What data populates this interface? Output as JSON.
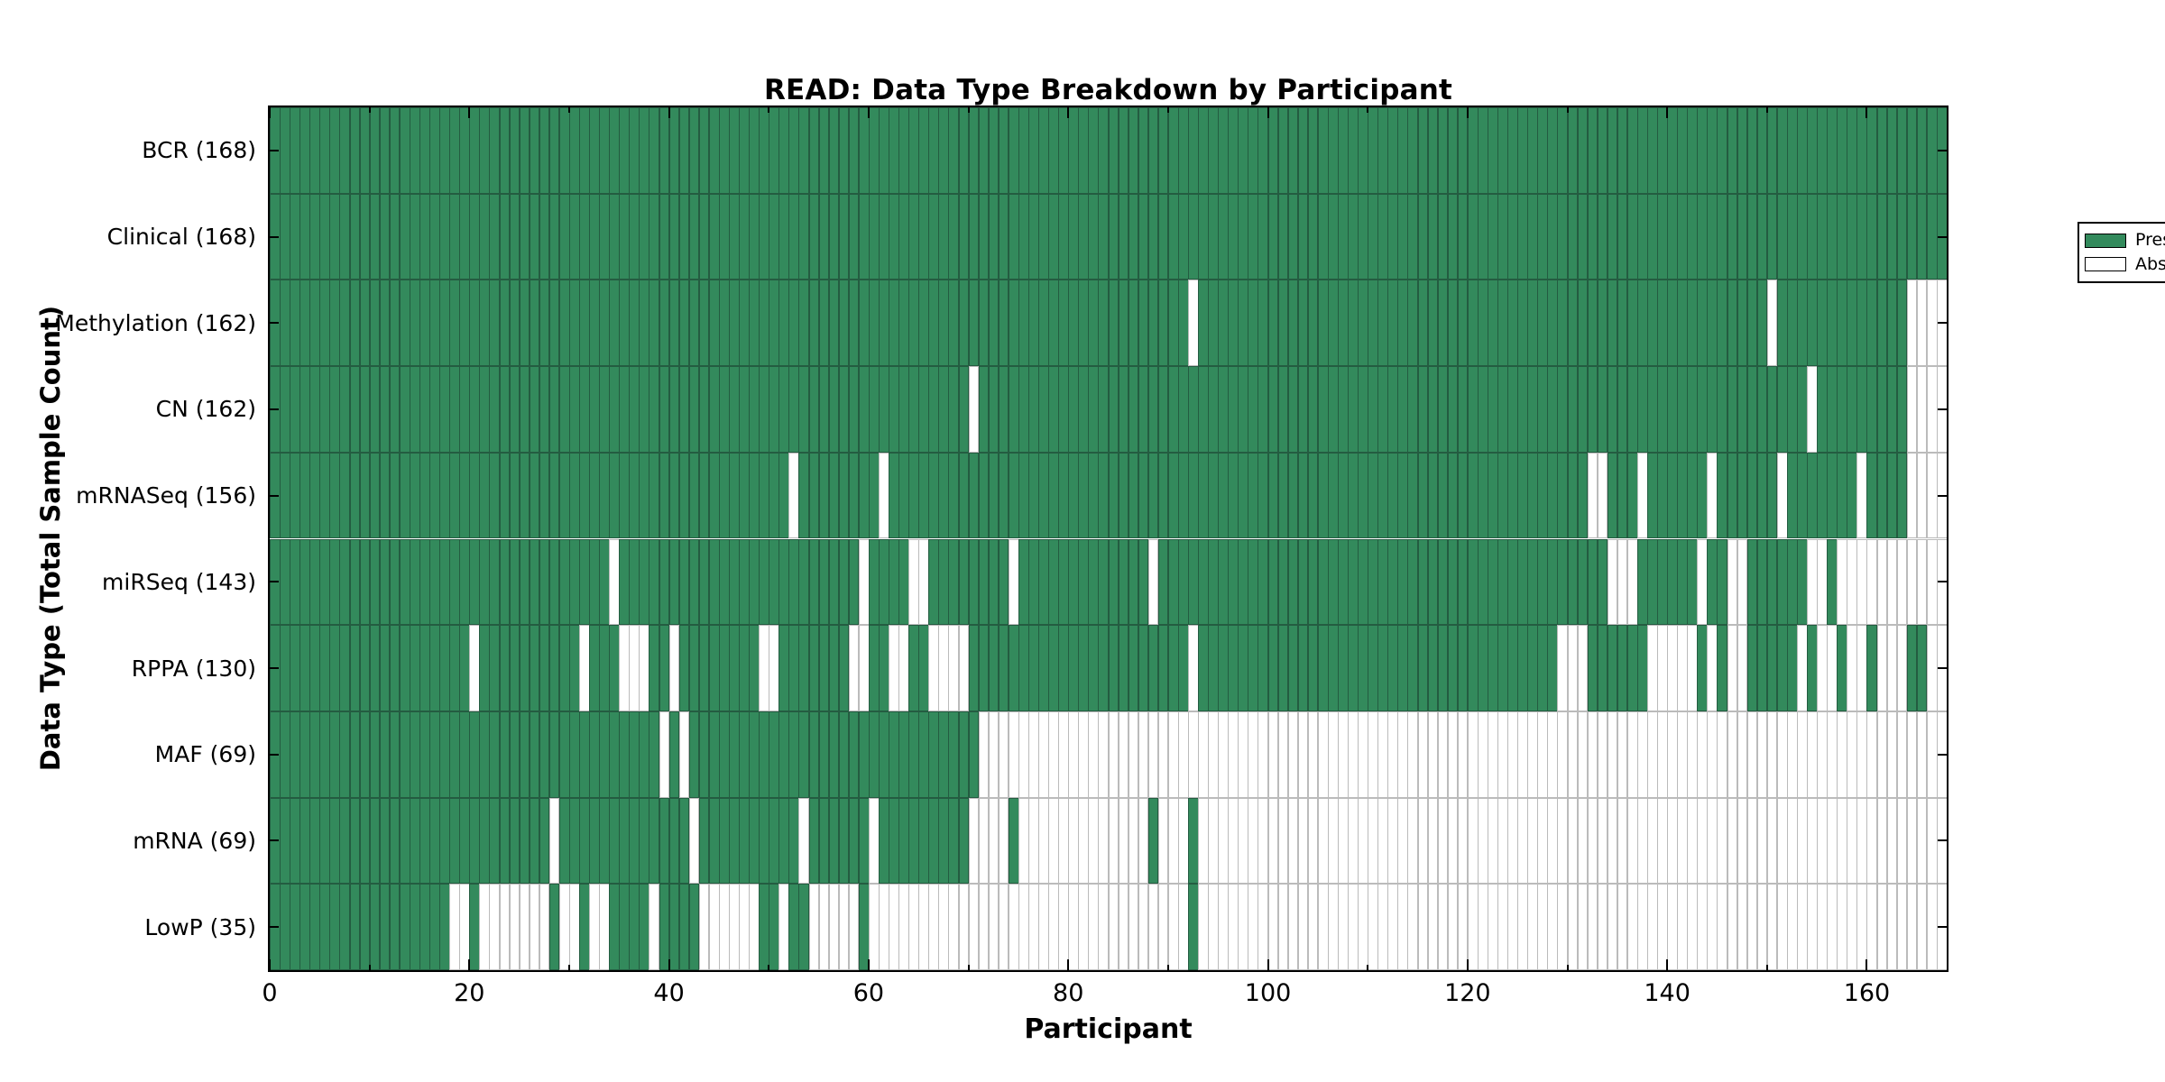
{
  "chart_data": {
    "type": "heatmap",
    "title": "READ: Data Type Breakdown by Participant",
    "xlabel": "Participant",
    "ylabel": "Data Type (Total Sample Count)",
    "xlim": [
      0,
      168
    ],
    "n_participants": 168,
    "x_ticks": [
      0,
      20,
      40,
      60,
      80,
      100,
      120,
      140,
      160
    ],
    "x_minor_ticks": [
      10,
      30,
      50,
      70,
      90,
      110,
      130,
      150
    ],
    "grid": false,
    "legend_position": "top-right",
    "colors": {
      "present": "#338A5C",
      "absent": "#FFFFFF",
      "present_edge": "#245C41",
      "absent_edge": "#BBBBBB",
      "spine": "#000000"
    },
    "legend": {
      "entries": [
        {
          "label": "Present",
          "color": "#338A5C"
        },
        {
          "label": "Absent",
          "color": "#FFFFFF"
        }
      ]
    },
    "rows": [
      {
        "label": "BCR (168)",
        "count": 168,
        "absent": []
      },
      {
        "label": "Clinical (168)",
        "count": 168,
        "absent": []
      },
      {
        "label": "Methylation (162)",
        "count": 162,
        "absent": [
          92,
          150,
          [
            164,
            167
          ]
        ]
      },
      {
        "label": "CN (162)",
        "count": 162,
        "absent": [
          70,
          154,
          [
            164,
            167
          ]
        ]
      },
      {
        "label": "mRNASeq (156)",
        "count": 156,
        "absent": [
          52,
          61,
          132,
          133,
          137,
          144,
          151,
          159,
          [
            164,
            167
          ]
        ]
      },
      {
        "label": "miRSeq (143)",
        "count": 143,
        "absent": [
          34,
          59,
          64,
          65,
          74,
          88,
          [
            134,
            136
          ],
          143,
          146,
          147,
          154,
          155,
          [
            157,
            167
          ]
        ]
      },
      {
        "label": "RPPA (130)",
        "count": 130,
        "absent": [
          20,
          31,
          [
            35,
            37
          ],
          40,
          49,
          50,
          58,
          59,
          62,
          63,
          [
            66,
            69
          ],
          92,
          [
            129,
            131
          ],
          [
            138,
            142
          ],
          144,
          146,
          147,
          153,
          155,
          156,
          158,
          159,
          [
            161,
            163
          ],
          166,
          167
        ]
      },
      {
        "label": "MAF (69)",
        "count": 69,
        "absent": [
          39,
          41,
          [
            71,
            167
          ]
        ]
      },
      {
        "label": "mRNA (69)",
        "count": 69,
        "absent": [
          28,
          42,
          53,
          60,
          [
            70,
            73
          ],
          [
            75,
            87
          ],
          [
            89,
            91
          ],
          [
            93,
            167
          ]
        ]
      },
      {
        "label": "LowP (35)",
        "count": 35,
        "absent": [
          18,
          19,
          [
            21,
            27
          ],
          29,
          30,
          32,
          33,
          38,
          [
            43,
            48
          ],
          51,
          [
            54,
            58
          ],
          [
            60,
            91
          ],
          [
            93,
            167
          ]
        ]
      }
    ]
  }
}
